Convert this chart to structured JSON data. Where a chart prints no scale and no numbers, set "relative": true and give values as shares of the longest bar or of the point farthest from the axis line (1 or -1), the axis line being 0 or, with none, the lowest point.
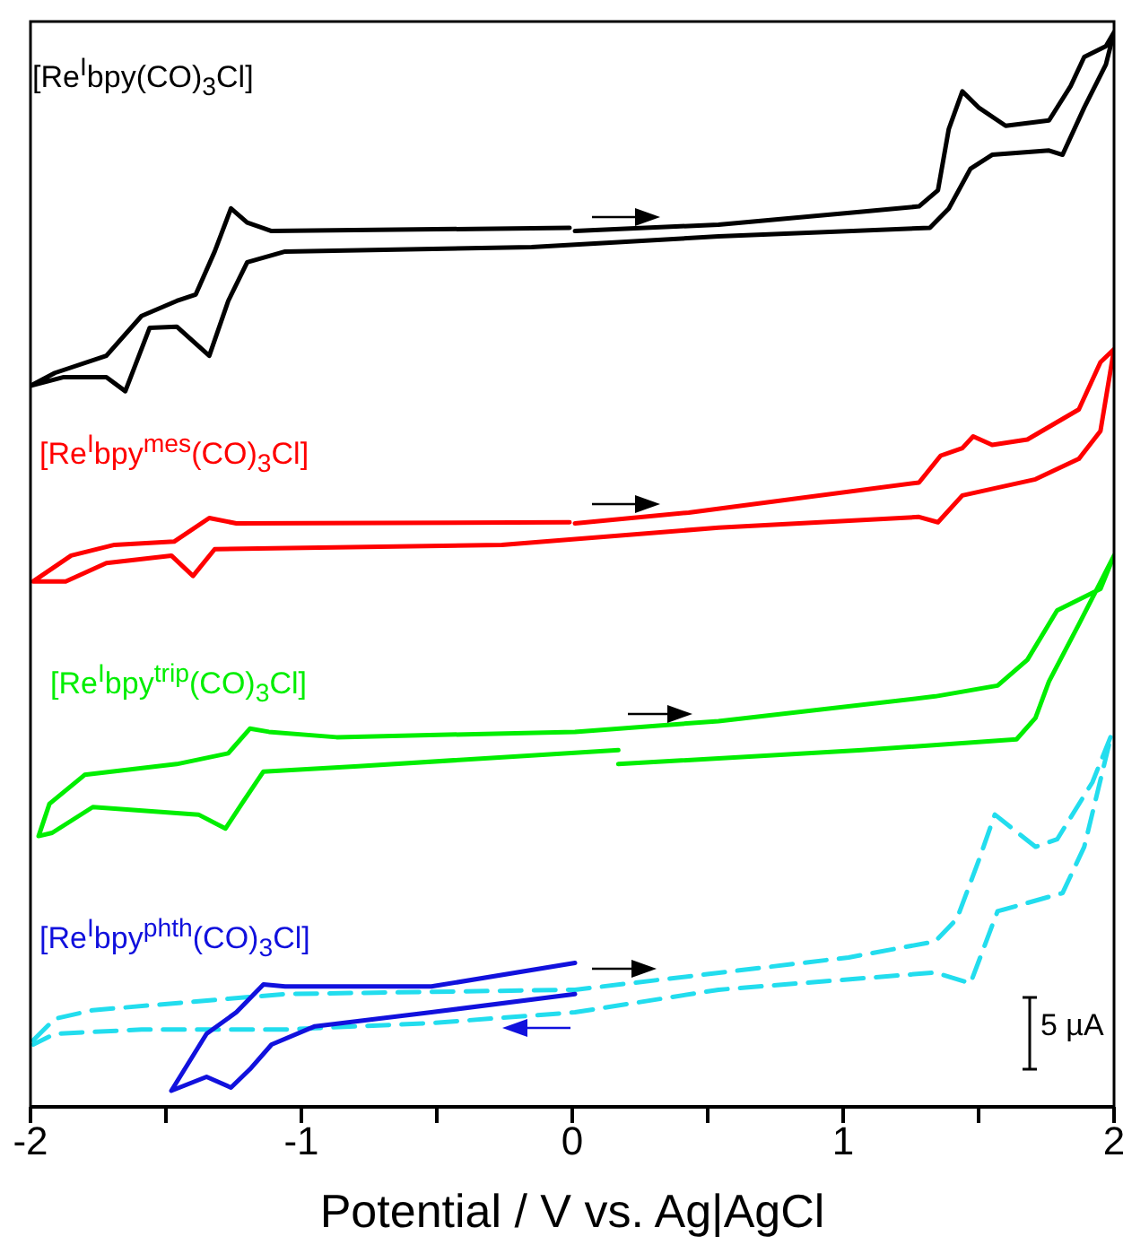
{
  "chart_data": {
    "type": "line",
    "relative": true,
    "xlabel": "Potential / V vs. Ag|AgCl",
    "xlim": [
      -2,
      2
    ],
    "xticks": [
      -2,
      {
        "value": -1.5,
        "label": null
      },
      -1,
      {
        "value": -0.5,
        "label": null
      },
      0,
      {
        "value": 0.5,
        "label": null
      },
      1,
      {
        "value": 1.5,
        "label": null
      },
      2
    ],
    "line_style": "solid",
    "annotations": [
      "5 µA"
    ],
    "series": [
      {
        "name": "[Re$^{I}$bpy(CO)$_{3}$Cl]",
        "color": "#000000",
        "x": [
          0.01,
          0.54,
          1.07,
          1.28,
          1.35,
          1.39,
          1.44,
          1.5,
          1.6,
          1.76,
          1.84,
          1.89,
          1.97,
          2.0,
          1.97,
          1.89,
          1.81,
          1.76,
          1.55,
          1.47,
          1.39,
          1.32,
          0.54,
          -0.15,
          -1.06,
          -1.2,
          -1.27,
          -1.34,
          -1.46,
          -1.56,
          -1.65,
          -1.72,
          -1.88,
          -2.0,
          -1.91,
          -1.72,
          -1.59,
          -1.46,
          -1.39,
          -1.32,
          -1.26,
          -1.2,
          -1.11,
          -0.01
        ],
        "values": [
          0.815,
          0.821,
          0.833,
          0.838,
          0.853,
          0.91,
          0.945,
          0.93,
          0.913,
          0.918,
          0.95,
          0.977,
          0.987,
          1.0,
          0.97,
          0.93,
          0.886,
          0.89,
          0.886,
          0.873,
          0.836,
          0.818,
          0.81,
          0.8,
          0.796,
          0.786,
          0.75,
          0.699,
          0.726,
          0.725,
          0.666,
          0.679,
          0.679,
          0.671,
          0.683,
          0.699,
          0.736,
          0.75,
          0.756,
          0.796,
          0.836,
          0.823,
          0.815,
          0.818
        ]
      },
      {
        "name": "[Re$^{I}$bpy$^{mes}$(CO)$_{3}$Cl]",
        "color": "#ff0000",
        "x": [
          0.01,
          0.43,
          1.28,
          1.36,
          1.44,
          1.48,
          1.55,
          1.68,
          1.87,
          1.95,
          2.0,
          1.95,
          1.87,
          1.71,
          1.44,
          1.35,
          1.28,
          0.54,
          -0.26,
          -1.32,
          -1.4,
          -1.48,
          -1.72,
          -1.87,
          -1.99,
          -1.85,
          -1.69,
          -1.47,
          -1.34,
          -1.24,
          -0.01
        ],
        "values": [
          0.543,
          0.553,
          0.581,
          0.606,
          0.613,
          0.624,
          0.616,
          0.621,
          0.649,
          0.693,
          0.705,
          0.629,
          0.603,
          0.584,
          0.569,
          0.544,
          0.549,
          0.539,
          0.523,
          0.519,
          0.494,
          0.513,
          0.506,
          0.489,
          0.489,
          0.513,
          0.523,
          0.526,
          0.548,
          0.543,
          0.544
        ]
      },
      {
        "name": "[Re$^{I}$bpy$^{trip}$(CO)$_{3}$Cl]",
        "color": "#00ee00",
        "x": [
          0.17,
          1.07,
          1.64,
          1.71,
          1.76,
          1.87,
          2.0,
          1.95,
          1.79,
          1.68,
          1.57,
          1.34,
          0.54,
          0.01,
          -0.87,
          -1.12,
          -1.19,
          -1.27,
          -1.46,
          -1.8,
          -1.93,
          -1.97,
          -1.92,
          -1.77,
          -1.38,
          -1.28,
          -1.22,
          -1.14,
          -0.79,
          0.17
        ],
        "values": [
          0.319,
          0.332,
          0.342,
          0.362,
          0.396,
          0.449,
          0.513,
          0.482,
          0.462,
          0.416,
          0.392,
          0.382,
          0.359,
          0.349,
          0.344,
          0.349,
          0.352,
          0.329,
          0.319,
          0.309,
          0.282,
          0.252,
          0.255,
          0.279,
          0.272,
          0.259,
          0.282,
          0.312,
          0.317,
          0.332
        ]
      },
      {
        "color": "#22ddee",
        "line_style": "dashed",
        "x": [
          -1.99,
          -1.91,
          -1.77,
          -1.06,
          0.01,
          1.02,
          1.34,
          1.42,
          1.5,
          1.56,
          1.71,
          1.79,
          1.92,
          1.99,
          1.89,
          1.81,
          1.57,
          1.47,
          1.34,
          0.54,
          0.01,
          -0.52,
          -1.06,
          -1.59,
          -1.91,
          -1.99
        ],
        "values": [
          0.062,
          0.082,
          0.09,
          0.105,
          0.109,
          0.139,
          0.154,
          0.175,
          0.229,
          0.272,
          0.242,
          0.249,
          0.302,
          0.346,
          0.242,
          0.199,
          0.182,
          0.115,
          0.125,
          0.109,
          0.088,
          0.078,
          0.072,
          0.072,
          0.068,
          0.058
        ]
      },
      {
        "name": "[Re$^{I}$bpy$^{phth}$(CO)$_{3}$Cl]",
        "color": "#1111dd",
        "x": [
          0.01,
          -0.52,
          -1.06,
          -1.14,
          -1.24,
          -1.35,
          -1.48,
          -1.35,
          -1.26,
          -1.19,
          -1.11,
          -0.95,
          -0.52,
          0.01
        ],
        "values": [
          0.134,
          0.112,
          0.112,
          0.114,
          0.088,
          0.068,
          0.015,
          0.028,
          0.018,
          0.035,
          0.058,
          0.075,
          0.088,
          0.105
        ]
      }
    ]
  }
}
